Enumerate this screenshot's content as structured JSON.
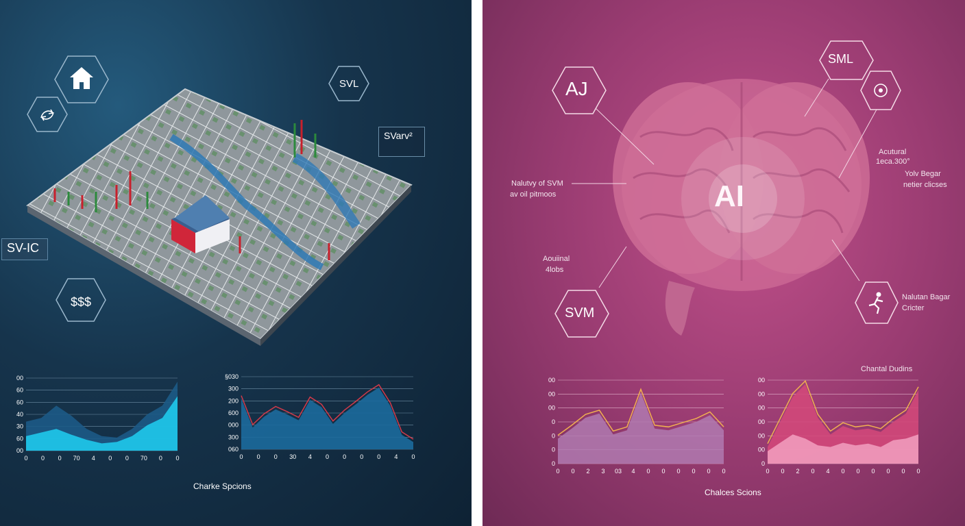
{
  "left": {
    "nodes": {
      "svl": "SVL",
      "svarv": "SVarv²",
      "svarv_sub": "²",
      "svic": "SV-IC"
    },
    "icons": [
      "house-icon",
      "swap-arrows-icon",
      "dollar-icon"
    ],
    "chart1": {
      "y_ticks": [
        "00",
        "60",
        "60",
        "40",
        "30",
        "60",
        "00"
      ],
      "x_ticks": [
        "0",
        "0",
        "0",
        "70",
        "4",
        "0",
        "0",
        "70",
        "0",
        "0"
      ]
    },
    "chart2": {
      "y_ticks": [
        "§030",
        "300",
        "200",
        "600",
        "000",
        "300",
        "060"
      ],
      "x_ticks": [
        "0",
        "0",
        "0",
        "30",
        "4",
        "0",
        "0",
        "0",
        "0",
        "4",
        "0"
      ]
    },
    "caption": "Charke Spcions"
  },
  "right": {
    "nodes": {
      "aj": "AJ",
      "sml": "SML",
      "svm": "SVM",
      "ai": "AI"
    },
    "icons": [
      "target-icon",
      "runner-icon"
    ],
    "annotations": {
      "a1_line1": "Nalutvy of SVM",
      "a1_line2": "av oil pitmoos",
      "a2_line1": "Aouiinal",
      "a2_line2": "4lobs",
      "a3_line1": "Acutural",
      "a3_line2": "1eca.300°",
      "a4_line1": "Yolv Begar",
      "a4_line2": "netier clicses",
      "a5_line1": "Nalutan Bagar",
      "a5_line2": "Cricter",
      "chart_title": "Chantal Dudins"
    },
    "chart1": {
      "y_ticks": [
        "00",
        "00",
        "00",
        "0",
        "0",
        "0",
        "0"
      ],
      "x_ticks": [
        "0",
        "0",
        "2",
        "3",
        "03",
        "4",
        "0",
        "0",
        "0",
        "0",
        "0",
        "0"
      ]
    },
    "chart2": {
      "y_ticks": [
        "00",
        "00",
        "00",
        "00",
        "00",
        "00",
        "0"
      ],
      "x_ticks": [
        "0",
        "0",
        "2",
        "0",
        "4",
        "0",
        "0",
        "0",
        "0",
        "0",
        "0"
      ]
    },
    "caption": "Chalces Scions"
  },
  "chart_data": [
    {
      "type": "area",
      "series": [
        {
          "values": [
            40,
            45,
            62,
            48,
            30,
            20,
            18,
            30,
            50,
            62,
            95
          ]
        },
        {
          "values": [
            20,
            25,
            30,
            22,
            15,
            10,
            12,
            20,
            35,
            45,
            75
          ]
        }
      ],
      "colors": [
        "#1c5a86",
        "#1fd0f2"
      ]
    },
    {
      "type": "area",
      "series": [
        {
          "values": [
            70,
            30,
            45,
            55,
            48,
            40,
            68,
            58,
            35,
            50,
            62,
            75,
            85,
            60,
            20,
            10
          ]
        }
      ],
      "colors": [
        "#1c6a9c",
        "#d23a4a"
      ]
    },
    {
      "type": "area",
      "series": [
        {
          "values": [
            30,
            42,
            55,
            60,
            35,
            40,
            85,
            42,
            40,
            45,
            50,
            58,
            40
          ]
        }
      ],
      "colors": [
        "#b07ab0",
        "#f0b050"
      ]
    },
    {
      "type": "area",
      "series": [
        {
          "values": [
            20,
            50,
            80,
            95,
            55,
            35,
            45,
            40,
            42,
            38,
            50,
            60,
            88
          ]
        },
        {
          "values": [
            15,
            25,
            35,
            30,
            22,
            20,
            25,
            22,
            24,
            20,
            28,
            30,
            35
          ]
        }
      ],
      "colors": [
        "#d2487a",
        "#f2a0c0"
      ]
    }
  ]
}
